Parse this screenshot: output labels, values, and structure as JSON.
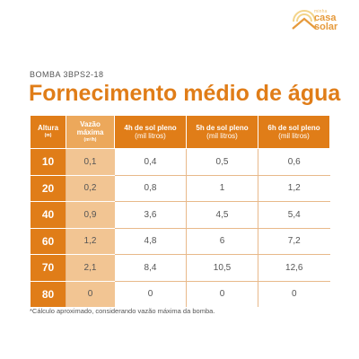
{
  "logo": {
    "sub": "minha",
    "word1": "casa",
    "word2": "solar",
    "color": "#e69a3c"
  },
  "subtitle": "BOMBA 3BPS2-18",
  "title": "Fornecimento médio de água",
  "table": {
    "headers": {
      "altura": {
        "main": "Altura",
        "unit": "(m)"
      },
      "vazao": {
        "main": "Vazão máxima",
        "unit": "(m³/h)"
      },
      "h4": {
        "main": "4h de sol pleno",
        "unit": "(mil litros)"
      },
      "h5": {
        "main": "5h de sol pleno",
        "unit": "(mil litros)"
      },
      "h6": {
        "main": "6h de sol pleno",
        "unit": "(mil litros)"
      }
    },
    "rows": [
      {
        "altura": "10",
        "vazao": "0,1",
        "h4": "0,4",
        "h5": "0,5",
        "h6": "0,6"
      },
      {
        "altura": "20",
        "vazao": "0,2",
        "h4": "0,8",
        "h5": "1",
        "h6": "1,2"
      },
      {
        "altura": "40",
        "vazao": "0,9",
        "h4": "3,6",
        "h5": "4,5",
        "h6": "5,4"
      },
      {
        "altura": "60",
        "vazao": "1,2",
        "h4": "4,8",
        "h5": "6",
        "h6": "7,2"
      },
      {
        "altura": "70",
        "vazao": "2,1",
        "h4": "8,4",
        "h5": "10,5",
        "h6": "12,6"
      },
      {
        "altura": "80",
        "vazao": "0",
        "h4": "0",
        "h5": "0",
        "h6": "0"
      }
    ]
  },
  "footnote": "*Cálculo aproximado, considerando vazão máxima da bomba.",
  "colors": {
    "accent": "#e07d18",
    "accent_light": "#f2c593",
    "text": "#555555"
  }
}
